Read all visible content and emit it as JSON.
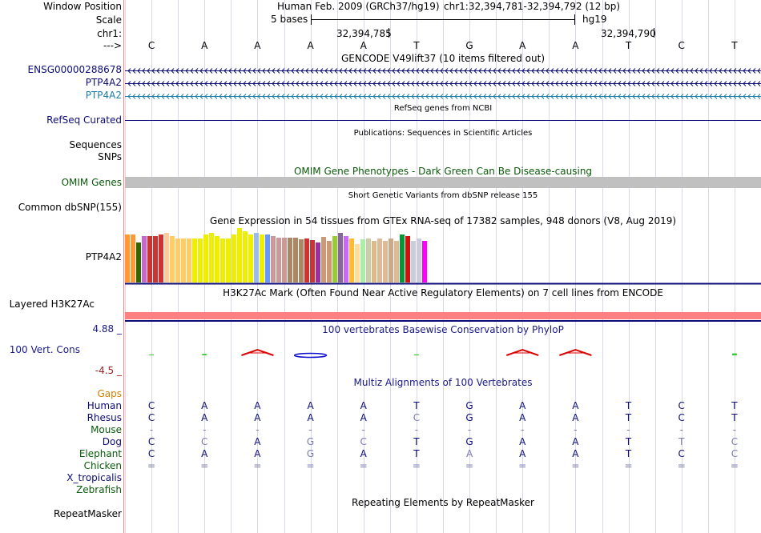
{
  "header": {
    "window_position_label": "Window Position",
    "assembly": "Human Feb. 2009 (GRCh37/hg19)",
    "position": "chr1:32,394,781-32,394,792 (12 bp)",
    "scale_label": "Scale",
    "scale_text": "5 bases",
    "scale_db": "hg19",
    "chrom_label": "chr1:",
    "coord_1": "32,394,785",
    "coord_2": "32,394,790",
    "arrow_label": "--->"
  },
  "sequence": [
    "C",
    "A",
    "A",
    "A",
    "A",
    "T",
    "G",
    "A",
    "A",
    "T",
    "C",
    "T"
  ],
  "gencode": {
    "title": "GENCODE V49lift37 (10 items filtered out)",
    "items": [
      "ENSG00000288678",
      "PTP4A2",
      "PTP4A2"
    ],
    "colors": [
      "#0c0c78",
      "#0c0c78",
      "#1a7fa8"
    ]
  },
  "refseq": {
    "title": "RefSeq genes from NCBI",
    "label": "RefSeq Curated"
  },
  "publications": {
    "title": "Publications: Sequences in Scientific Articles",
    "labels": [
      "Sequences",
      "SNPs"
    ]
  },
  "omim": {
    "title": "OMIM Gene Phenotypes - Dark Green Can Be Disease-causing",
    "label": "OMIM Genes",
    "color": "#0a5a0a"
  },
  "dbsnp": {
    "title": "Short Genetic Variants from dbSNP release 155",
    "label": "Common dbSNP(155)"
  },
  "gtex": {
    "title": "Gene Expression in 54 tissues from GTEx RNA-seq of 17382 samples, 948 donors (V8, Aug 2019)",
    "label": "PTP4A2",
    "values": [
      60,
      60,
      50,
      58,
      58,
      58,
      60,
      62,
      58,
      55,
      55,
      55,
      55,
      55,
      60,
      62,
      58,
      55,
      55,
      60,
      68,
      64,
      60,
      62,
      60,
      60,
      58,
      56,
      56,
      56,
      56,
      54,
      55,
      53,
      50,
      57,
      52,
      58,
      62,
      58,
      55,
      48,
      54,
      55,
      52,
      55,
      52,
      55,
      52,
      60,
      58,
      52,
      55,
      52
    ],
    "colors": [
      "#ff9933",
      "#ff9933",
      "#336600",
      "#cc66cc",
      "#cc3333",
      "#cc3333",
      "#cc3333",
      "#ffcc99",
      "#ffcc66",
      "#ffcc66",
      "#ffcc66",
      "#ffcc66",
      "#eeee00",
      "#eeee00",
      "#eeee00",
      "#eeee00",
      "#eeee00",
      "#eeee00",
      "#eeee00",
      "#eeee00",
      "#eeee00",
      "#eeee00",
      "#eeee00",
      "#99bbee",
      "#eeee00",
      "#6699ff",
      "#cc9999",
      "#cc9999",
      "#cc9999",
      "#aa8866",
      "#aa8866",
      "#aa8866",
      "#cc3333",
      "#cc3333",
      "#993399",
      "#cc9977",
      "#cc9977",
      "#99cc33",
      "#886699",
      "#cc66ff",
      "#ffbb33",
      "#ffdd99",
      "#aaeeaa",
      "#ccccaa",
      "#ddbb88",
      "#ddbb99",
      "#ddbb99",
      "#ccaa88",
      "#ddbb99",
      "#009933",
      "#cc1111",
      "#ccccdd",
      "#ccccdd",
      "#ff00ff"
    ]
  },
  "h3k27ac": {
    "title": "H3K27Ac Mark (Often Found Near Active Regulatory Elements) on 7 cell lines from ENCODE",
    "label": "Layered H3K27Ac"
  },
  "phylop": {
    "title": "100 vertebrates Basewise Conservation by PhyloP",
    "label": "100 Vert. Cons",
    "max": "4.88 _",
    "min": "-4.5 _",
    "scores": [
      0.1,
      0.3,
      1.4,
      -0.6,
      0,
      0.2,
      0,
      1.3,
      1.3,
      0,
      0,
      0.4
    ]
  },
  "multiz": {
    "title": "Multiz Alignments of 100 Vertebrates",
    "gaps_label": "Gaps",
    "species": [
      {
        "name": "Human",
        "bases": [
          "C",
          "A",
          "A",
          "A",
          "A",
          "T",
          "G",
          "A",
          "A",
          "T",
          "C",
          "T"
        ]
      },
      {
        "name": "Rhesus",
        "bases": [
          "C",
          "A",
          "A",
          "A",
          "A",
          "C",
          "G",
          "A",
          "A",
          "T",
          "C",
          "T"
        ]
      },
      {
        "name": "Mouse",
        "bases": [
          "-",
          "-",
          "-",
          "-",
          "-",
          "-",
          "-",
          "-",
          "-",
          "-",
          "-",
          "-"
        ]
      },
      {
        "name": "Dog",
        "bases": [
          "C",
          "C",
          "A",
          "G",
          "C",
          "T",
          "G",
          "A",
          "A",
          "T",
          "T",
          "C"
        ]
      },
      {
        "name": "Elephant",
        "bases": [
          "C",
          "A",
          "A",
          "G",
          "A",
          "T",
          "A",
          "A",
          "A",
          "T",
          "C",
          "C"
        ]
      },
      {
        "name": "Chicken",
        "bases": [
          "=",
          "=",
          "=",
          "=",
          "=",
          "=",
          "=",
          "=",
          "=",
          "=",
          "=",
          "="
        ]
      },
      {
        "name": "X_tropicalis",
        "bases": [
          "",
          "",
          "",
          "",
          "",
          "",
          "",
          "",
          "",
          "",
          "",
          ""
        ]
      },
      {
        "name": "Zebrafish",
        "bases": [
          "",
          "",
          "",
          "",
          "",
          "",
          "",
          "",
          "",
          "",
          "",
          ""
        ]
      }
    ]
  },
  "repeatmasker": {
    "title": "Repeating Elements by RepeatMasker",
    "label": "RepeatMasker"
  },
  "colors": {
    "track_blue": "#0c0c78",
    "link_blue": "#1a7fa8",
    "omim_green": "#0a5a0a",
    "gaps_orange": "#d08000",
    "h3k27ac_pink": "#ff8080",
    "phylop_pos": "#dd0000",
    "phylop_neg": "#1010cc"
  }
}
